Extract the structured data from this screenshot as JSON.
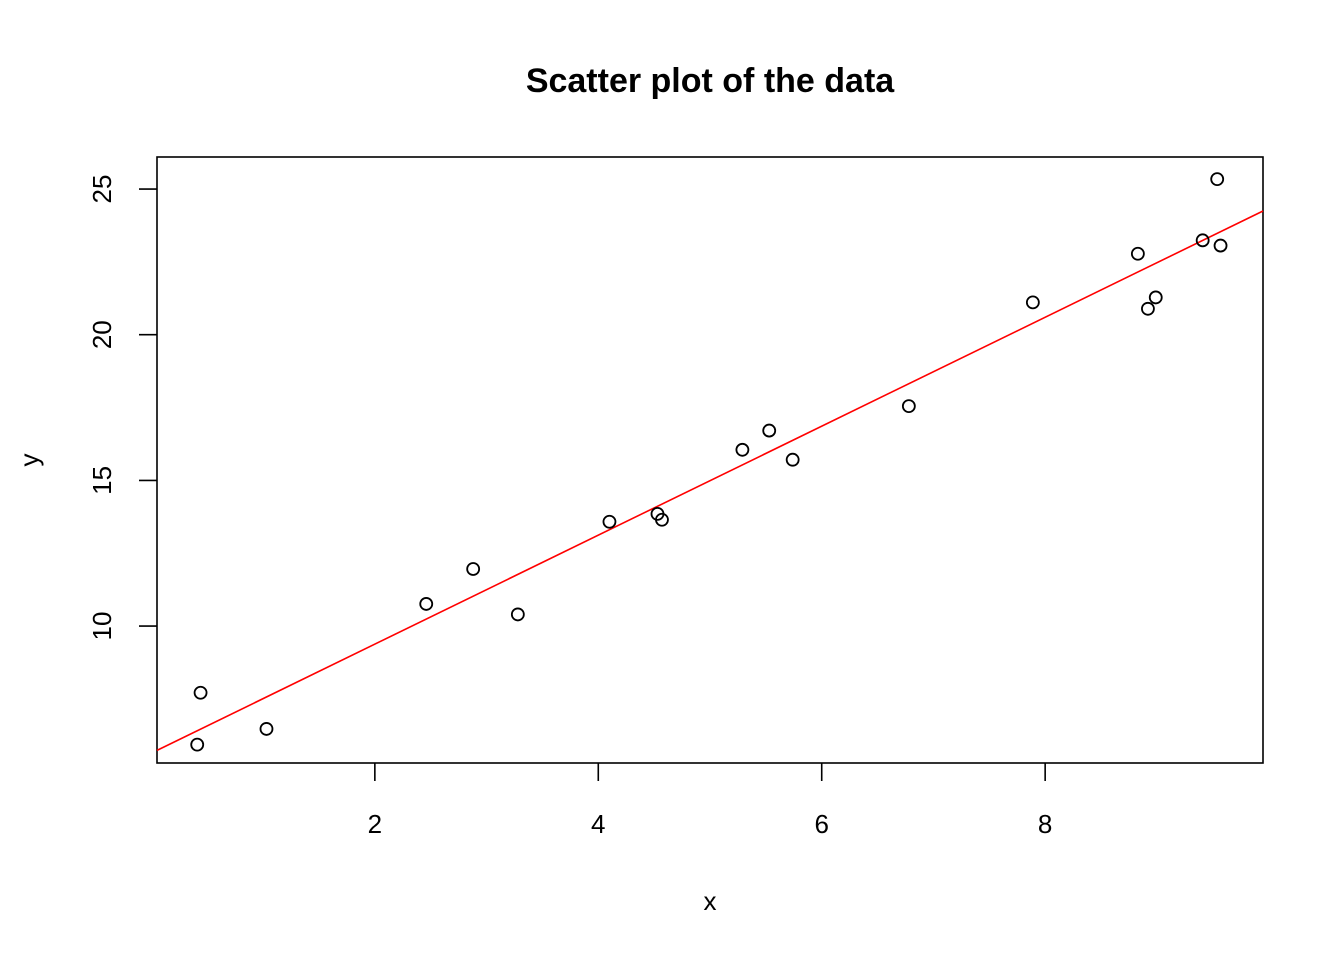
{
  "chart_data": {
    "type": "scatter",
    "title": "Scatter plot of the data",
    "xlabel": "x",
    "ylabel": "y",
    "xlim": [
      0.05,
      9.95
    ],
    "ylim": [
      5.3,
      26.1
    ],
    "x_ticks": [
      2,
      4,
      6,
      8
    ],
    "y_ticks": [
      10,
      15,
      20,
      25
    ],
    "x_tick_labels": [
      "2",
      "4",
      "6",
      "8"
    ],
    "y_tick_labels": [
      "10",
      "15",
      "20",
      "25"
    ],
    "grid": false,
    "legend": "none",
    "points": [
      {
        "x": 0.41,
        "y": 5.93
      },
      {
        "x": 0.44,
        "y": 7.71
      },
      {
        "x": 1.03,
        "y": 6.47
      },
      {
        "x": 2.46,
        "y": 10.76
      },
      {
        "x": 2.88,
        "y": 11.96
      },
      {
        "x": 3.28,
        "y": 10.4
      },
      {
        "x": 4.1,
        "y": 13.58
      },
      {
        "x": 4.53,
        "y": 13.85
      },
      {
        "x": 4.57,
        "y": 13.65
      },
      {
        "x": 5.29,
        "y": 16.05
      },
      {
        "x": 5.53,
        "y": 16.71
      },
      {
        "x": 5.74,
        "y": 15.71
      },
      {
        "x": 6.78,
        "y": 17.55
      },
      {
        "x": 7.89,
        "y": 21.11
      },
      {
        "x": 8.83,
        "y": 22.78
      },
      {
        "x": 8.92,
        "y": 20.89
      },
      {
        "x": 8.99,
        "y": 21.28
      },
      {
        "x": 9.41,
        "y": 23.24
      },
      {
        "x": 9.54,
        "y": 25.34
      },
      {
        "x": 9.57,
        "y": 23.06
      }
    ],
    "fit_line": {
      "intercept": 5.64,
      "slope": 1.87,
      "color": "#ff0000"
    },
    "point_color": "#000000"
  }
}
